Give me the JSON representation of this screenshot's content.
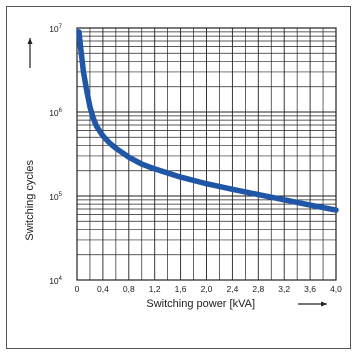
{
  "chart_data": {
    "type": "line",
    "title": "",
    "xlabel": "Switching power [kVA]",
    "ylabel": "Switching cycles",
    "xscale": "linear",
    "yscale": "log",
    "xlim": [
      0,
      4.0
    ],
    "ylim": [
      10000,
      10000000
    ],
    "grid": true,
    "legend": "none",
    "x_ticks": [
      "0",
      "0,4",
      "0,8",
      "1,2",
      "1,6",
      "2,0",
      "2,4",
      "2,8",
      "3,2",
      "3,6",
      "4,0"
    ],
    "y_ticks": [
      {
        "base": "10",
        "exp": "4",
        "value": 10000
      },
      {
        "base": "10",
        "exp": "5",
        "value": 100000
      },
      {
        "base": "10",
        "exp": "6",
        "value": 1000000
      },
      {
        "base": "10",
        "exp": "7",
        "value": 10000000
      }
    ],
    "series": [
      {
        "color": "#1f56a6",
        "x": [
          0.03,
          0.06,
          0.1,
          0.15,
          0.2,
          0.25,
          0.3,
          0.4,
          0.5,
          0.6,
          0.8,
          1.0,
          1.2,
          1.6,
          2.0,
          2.4,
          2.8,
          3.2,
          3.6,
          4.0
        ],
        "y": [
          9000000,
          5500000,
          3000000,
          1800000,
          1150000,
          850000,
          680000,
          520000,
          430000,
          370000,
          290000,
          240000,
          210000,
          168000,
          140000,
          120000,
          104000,
          90000,
          78000,
          68000
        ]
      }
    ]
  }
}
